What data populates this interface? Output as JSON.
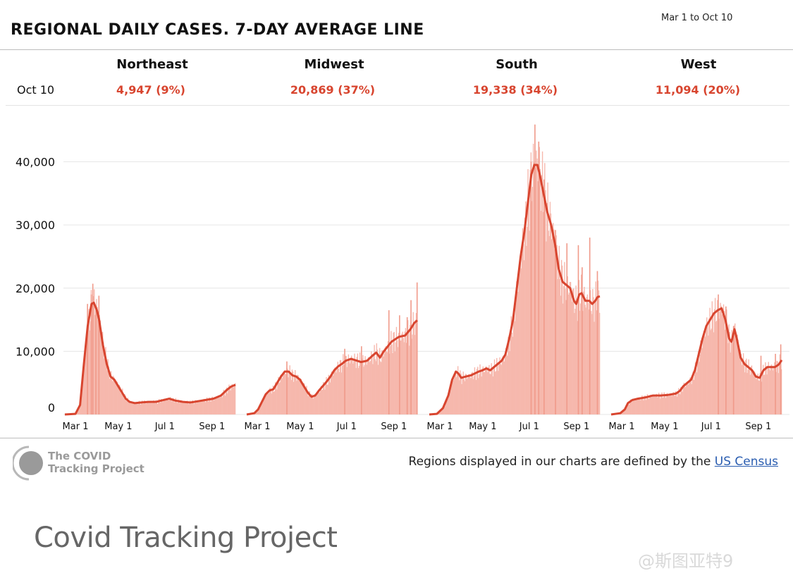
{
  "header": {
    "title": "REGIONAL DAILY CASES. 7-DAY AVERAGE LINE",
    "date_range": "Mar 1 to Oct 10"
  },
  "summary": {
    "row_label": "Oct 10",
    "regions": [
      {
        "name": "Northeast",
        "value": "4,947 (9%)"
      },
      {
        "name": "Midwest",
        "value": "20,869 (37%)"
      },
      {
        "name": "South",
        "value": "19,338 (34%)"
      },
      {
        "name": "West",
        "value": "11,094 (20%)"
      }
    ]
  },
  "colors": {
    "bar": "#f6b8ad",
    "bar_spike": "#f09a8a",
    "line": "#d8452f",
    "grid": "#e6e6e6"
  },
  "chart_data": {
    "type": "area",
    "ylim": [
      0,
      46000
    ],
    "yticks": [
      0,
      10000,
      20000,
      30000,
      40000
    ],
    "ytick_labels": [
      "0",
      "10,000",
      "20,000",
      "30,000",
      "40,000"
    ],
    "x_ticks": [
      {
        "label": "Mar 1",
        "day": 0
      },
      {
        "label": "May 1",
        "day": 61
      },
      {
        "label": "Jul 1",
        "day": 122
      },
      {
        "label": "Sep 1",
        "day": 184
      }
    ],
    "x_days": 224,
    "grid": true,
    "series": [
      {
        "name": "Northeast",
        "avg": [
          [
            0,
            0
          ],
          [
            14,
            100
          ],
          [
            20,
            1500
          ],
          [
            25,
            8000
          ],
          [
            30,
            14000
          ],
          [
            35,
            17500
          ],
          [
            38,
            17700
          ],
          [
            42,
            16500
          ],
          [
            45,
            15000
          ],
          [
            50,
            11000
          ],
          [
            55,
            8000
          ],
          [
            60,
            6000
          ],
          [
            65,
            5500
          ],
          [
            70,
            4500
          ],
          [
            75,
            3500
          ],
          [
            80,
            2500
          ],
          [
            85,
            2000
          ],
          [
            92,
            1800
          ],
          [
            100,
            1900
          ],
          [
            110,
            2000
          ],
          [
            120,
            2000
          ],
          [
            130,
            2300
          ],
          [
            137,
            2500
          ],
          [
            145,
            2200
          ],
          [
            155,
            2000
          ],
          [
            165,
            1900
          ],
          [
            175,
            2100
          ],
          [
            185,
            2300
          ],
          [
            195,
            2500
          ],
          [
            205,
            3000
          ],
          [
            212,
            3800
          ],
          [
            218,
            4400
          ],
          [
            224,
            4700
          ]
        ],
        "spikes": [
          [
            29,
            17500
          ],
          [
            34,
            19000
          ],
          [
            36,
            20700
          ],
          [
            40,
            17000
          ],
          [
            44,
            18800
          ]
        ]
      },
      {
        "name": "Midwest",
        "avg": [
          [
            0,
            0
          ],
          [
            10,
            200
          ],
          [
            15,
            800
          ],
          [
            20,
            2000
          ],
          [
            25,
            3200
          ],
          [
            30,
            3800
          ],
          [
            35,
            4000
          ],
          [
            40,
            5000
          ],
          [
            45,
            6000
          ],
          [
            50,
            6800
          ],
          [
            55,
            6800
          ],
          [
            60,
            6200
          ],
          [
            65,
            6000
          ],
          [
            70,
            5500
          ],
          [
            75,
            4500
          ],
          [
            80,
            3500
          ],
          [
            85,
            2800
          ],
          [
            90,
            3000
          ],
          [
            95,
            3800
          ],
          [
            100,
            4500
          ],
          [
            105,
            5200
          ],
          [
            110,
            6000
          ],
          [
            115,
            7000
          ],
          [
            120,
            7600
          ],
          [
            125,
            8000
          ],
          [
            130,
            8500
          ],
          [
            137,
            8800
          ],
          [
            145,
            8500
          ],
          [
            150,
            8300
          ],
          [
            158,
            8500
          ],
          [
            165,
            9300
          ],
          [
            170,
            9800
          ],
          [
            175,
            9000
          ],
          [
            180,
            10000
          ],
          [
            190,
            11500
          ],
          [
            200,
            12300
          ],
          [
            208,
            12500
          ],
          [
            215,
            13500
          ],
          [
            220,
            14500
          ],
          [
            224,
            14900
          ]
        ],
        "spikes": [
          [
            52,
            8400
          ],
          [
            128,
            10400
          ],
          [
            150,
            10800
          ],
          [
            186,
            16500
          ],
          [
            200,
            15700
          ],
          [
            210,
            15400
          ],
          [
            215,
            18100
          ],
          [
            223,
            20900
          ]
        ]
      },
      {
        "name": "South",
        "avg": [
          [
            0,
            0
          ],
          [
            10,
            100
          ],
          [
            18,
            1000
          ],
          [
            25,
            3000
          ],
          [
            30,
            5500
          ],
          [
            35,
            6800
          ],
          [
            38,
            6500
          ],
          [
            42,
            5800
          ],
          [
            48,
            6000
          ],
          [
            55,
            6200
          ],
          [
            60,
            6500
          ],
          [
            65,
            6800
          ],
          [
            70,
            7000
          ],
          [
            75,
            7300
          ],
          [
            80,
            7000
          ],
          [
            85,
            7500
          ],
          [
            90,
            8000
          ],
          [
            95,
            8500
          ],
          [
            100,
            9500
          ],
          [
            105,
            12000
          ],
          [
            110,
            15000
          ],
          [
            115,
            20000
          ],
          [
            120,
            25000
          ],
          [
            125,
            29000
          ],
          [
            130,
            34000
          ],
          [
            134,
            38000
          ],
          [
            138,
            39500
          ],
          [
            142,
            39500
          ],
          [
            145,
            38000
          ],
          [
            150,
            35000
          ],
          [
            155,
            32000
          ],
          [
            160,
            30000
          ],
          [
            165,
            27000
          ],
          [
            170,
            23000
          ],
          [
            175,
            21000
          ],
          [
            180,
            20500
          ],
          [
            185,
            20000
          ],
          [
            190,
            18000
          ],
          [
            193,
            17500
          ],
          [
            197,
            19000
          ],
          [
            200,
            19200
          ],
          [
            205,
            18000
          ],
          [
            210,
            18000
          ],
          [
            214,
            17500
          ],
          [
            218,
            18000
          ],
          [
            221,
            18600
          ],
          [
            224,
            18700
          ]
        ],
        "spikes": [
          [
            133,
            40000
          ],
          [
            138,
            45900
          ],
          [
            143,
            43200
          ],
          [
            150,
            37200
          ],
          [
            165,
            29200
          ],
          [
            180,
            27100
          ],
          [
            195,
            26800
          ],
          [
            200,
            23300
          ],
          [
            210,
            28000
          ],
          [
            220,
            22700
          ]
        ]
      },
      {
        "name": "West",
        "avg": [
          [
            0,
            0
          ],
          [
            12,
            200
          ],
          [
            18,
            800
          ],
          [
            22,
            1800
          ],
          [
            28,
            2300
          ],
          [
            35,
            2500
          ],
          [
            45,
            2700
          ],
          [
            55,
            3000
          ],
          [
            65,
            3000
          ],
          [
            75,
            3100
          ],
          [
            85,
            3300
          ],
          [
            90,
            3700
          ],
          [
            95,
            4500
          ],
          [
            100,
            5000
          ],
          [
            105,
            5500
          ],
          [
            110,
            7000
          ],
          [
            115,
            9500
          ],
          [
            120,
            12000
          ],
          [
            125,
            14000
          ],
          [
            130,
            15000
          ],
          [
            135,
            16000
          ],
          [
            140,
            16500
          ],
          [
            145,
            16800
          ],
          [
            150,
            15000
          ],
          [
            155,
            12000
          ],
          [
            158,
            11500
          ],
          [
            162,
            13500
          ],
          [
            165,
            12000
          ],
          [
            170,
            9000
          ],
          [
            175,
            8000
          ],
          [
            180,
            7500
          ],
          [
            185,
            7000
          ],
          [
            190,
            6000
          ],
          [
            195,
            5800
          ],
          [
            200,
            7000
          ],
          [
            205,
            7500
          ],
          [
            210,
            7500
          ],
          [
            215,
            7500
          ],
          [
            220,
            7900
          ],
          [
            224,
            8600
          ]
        ],
        "spikes": [
          [
            140,
            19000
          ],
          [
            150,
            17100
          ],
          [
            160,
            14000
          ],
          [
            196,
            9300
          ],
          [
            215,
            9600
          ],
          [
            222,
            11100
          ]
        ]
      }
    ]
  },
  "footer": {
    "logo_line1": "The COVID",
    "logo_line2": "Tracking Project",
    "note": "Regions displayed in our charts are defined by the ",
    "note_link": "US Census",
    "caption": "Covid Tracking Project",
    "watermark": "@斯图亚特9"
  }
}
